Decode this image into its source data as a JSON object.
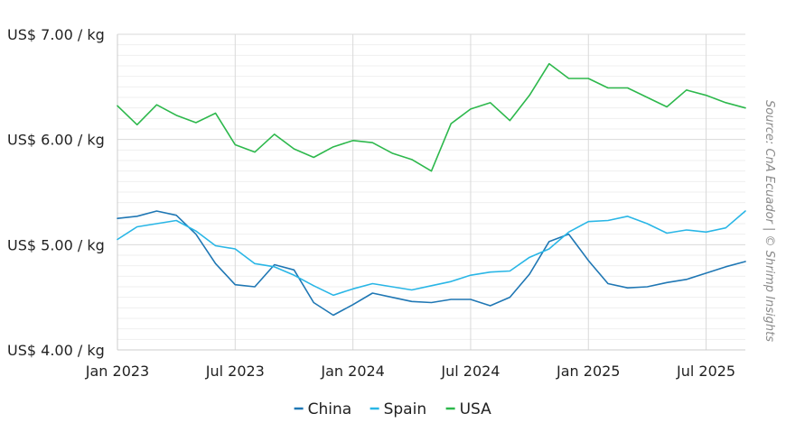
{
  "chart_data": {
    "type": "line",
    "x": [
      "2023-01",
      "2023-02",
      "2023-03",
      "2023-04",
      "2023-05",
      "2023-06",
      "2023-07",
      "2023-08",
      "2023-09",
      "2023-10",
      "2023-11",
      "2023-12",
      "2024-01",
      "2024-02",
      "2024-03",
      "2024-04",
      "2024-05",
      "2024-06",
      "2024-07",
      "2024-08",
      "2024-09",
      "2024-10",
      "2024-11",
      "2024-12",
      "2025-01",
      "2025-02",
      "2025-03",
      "2025-04",
      "2025-05",
      "2025-06",
      "2025-07",
      "2025-08",
      "2025-09"
    ],
    "series": [
      {
        "name": "China",
        "color": "#1f77b4",
        "values": [
          5.25,
          5.27,
          5.32,
          5.28,
          5.1,
          4.82,
          4.62,
          4.6,
          4.81,
          4.76,
          4.45,
          4.33,
          4.43,
          4.54,
          4.5,
          4.46,
          4.45,
          4.48,
          4.48,
          4.42,
          4.5,
          4.72,
          5.03,
          5.1,
          4.85,
          4.63,
          4.59,
          4.6,
          4.64,
          4.67,
          4.73,
          4.79,
          4.84
        ]
      },
      {
        "name": "Spain",
        "color": "#29b6e6",
        "values": [
          5.05,
          5.17,
          5.2,
          5.23,
          5.13,
          4.99,
          4.96,
          4.82,
          4.79,
          4.71,
          4.61,
          4.52,
          4.58,
          4.63,
          4.6,
          4.57,
          4.61,
          4.65,
          4.71,
          4.74,
          4.75,
          4.88,
          4.96,
          5.12,
          5.22,
          5.23,
          5.27,
          5.2,
          5.11,
          5.14,
          5.12,
          5.16,
          5.32
        ]
      },
      {
        "name": "USA",
        "color": "#2db84c",
        "values": [
          6.32,
          6.14,
          6.33,
          6.23,
          6.16,
          6.25,
          5.95,
          5.88,
          6.05,
          5.91,
          5.83,
          5.93,
          5.99,
          5.97,
          5.87,
          5.81,
          5.7,
          6.15,
          6.29,
          6.35,
          6.18,
          6.42,
          6.72,
          6.58,
          6.58,
          6.49,
          6.49,
          6.4,
          6.31,
          6.47,
          6.42,
          6.35,
          6.3
        ]
      }
    ],
    "xlabel": "",
    "ylabel": "",
    "ylim": [
      4.0,
      7.0
    ],
    "yticks": [
      {
        "value": 4.0,
        "label": "US$ 4.00 / kg"
      },
      {
        "value": 5.0,
        "label": "US$ 5.00 / kg"
      },
      {
        "value": 6.0,
        "label": "US$ 6.00 / kg"
      },
      {
        "value": 7.0,
        "label": "US$ 7.00 / kg"
      }
    ],
    "xticks": [
      {
        "x": "2023-01",
        "label": "Jan 2023"
      },
      {
        "x": "2023-07",
        "label": "Jul 2023"
      },
      {
        "x": "2024-01",
        "label": "Jan 2024"
      },
      {
        "x": "2024-07",
        "label": "Jul 2024"
      },
      {
        "x": "2025-01",
        "label": "Jan 2025"
      },
      {
        "x": "2025-07",
        "label": "Jul 2025"
      }
    ],
    "grid": true,
    "legend": "bottom-center",
    "source": "Source: CnA Ecuador | © Shrimp Insights"
  }
}
